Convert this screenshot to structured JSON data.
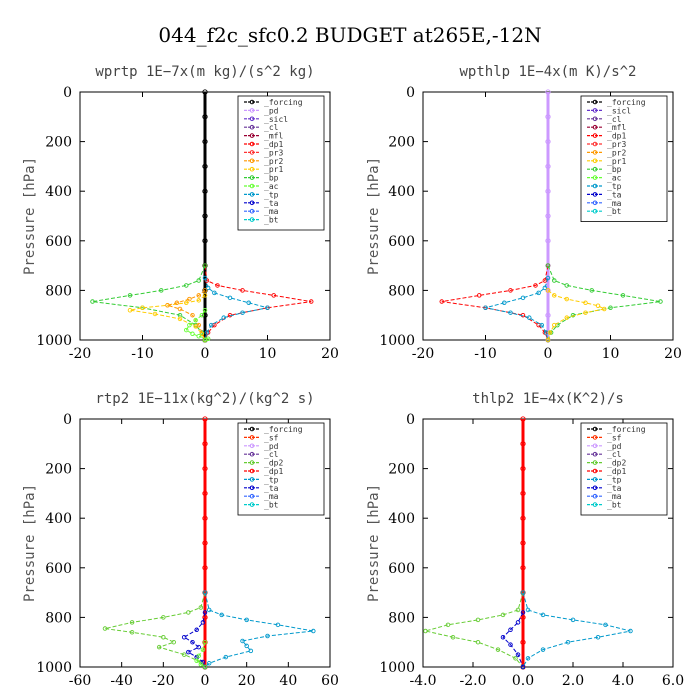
{
  "suptitle": "044_f2c_sfc0.2  BUDGET at265E,-12N",
  "colors": {
    "forcing": "#000000",
    "pd": "#cc99ff",
    "sicl": "#6633cc",
    "cl": "#663399",
    "mfl": "#990033",
    "dp1": "#ff0000",
    "pr3": "#ff3333",
    "pr2": "#ff9900",
    "pr1": "#ffcc00",
    "bp": "#33cc33",
    "ac": "#66ff33",
    "tp": "#0099cc",
    "ta": "#0000cc",
    "ma": "#3366ff",
    "bt": "#00cccc",
    "sf": "#ff3300",
    "dp2": "#66cc33"
  },
  "chart_data": [
    {
      "type": "line",
      "title": "wprtp   1E−7x(m kg)/(s^2 kg)",
      "ylabel": "Pressure [hPa]",
      "xlim": [
        -20,
        20
      ],
      "ylim": [
        1000,
        0
      ],
      "xticks": [
        "-20",
        "-10",
        "0",
        "10",
        "20"
      ],
      "yticks": [
        "0",
        "200",
        "400",
        "600",
        "800",
        "1000"
      ],
      "legend_position": "top-right",
      "legend": [
        "_forcing",
        "_pd",
        "_sicl",
        "_cl",
        "_mfl",
        "_dp1",
        "_pr3",
        "_pr2",
        "_pr1",
        "_bp",
        "_ac",
        "_tp",
        "_ta",
        "_ma",
        "_bt"
      ],
      "series": [
        {
          "name": "_forcing",
          "color_key": "forcing",
          "x": [
            0,
            0,
            0,
            0,
            0,
            0,
            0,
            0,
            0,
            0,
            0
          ],
          "y": [
            0,
            100,
            200,
            300,
            400,
            500,
            600,
            700,
            800,
            900,
            1000
          ]
        },
        {
          "name": "_dp1",
          "color_key": "dp1",
          "x": [
            0,
            0.3,
            2,
            6,
            11,
            17,
            10,
            4,
            1.5,
            0.5,
            0
          ],
          "y": [
            700,
            760,
            780,
            800,
            820,
            845,
            870,
            900,
            940,
            970,
            1000
          ]
        },
        {
          "name": "_bp",
          "color_key": "bp",
          "x": [
            0,
            -1,
            -3,
            -7,
            -12,
            -18,
            -10,
            -4,
            -1.5,
            -0.5,
            0
          ],
          "y": [
            700,
            760,
            780,
            800,
            820,
            845,
            870,
            900,
            940,
            970,
            1000
          ]
        },
        {
          "name": "_tp",
          "color_key": "tp",
          "x": [
            0,
            0.5,
            1.5,
            4,
            7,
            10,
            6,
            3,
            1,
            0.3,
            0
          ],
          "y": [
            750,
            790,
            810,
            830,
            850,
            870,
            890,
            910,
            940,
            970,
            1000
          ]
        },
        {
          "name": "_pr1",
          "color_key": "pr1",
          "x": [
            0,
            -1,
            -3,
            -6,
            -10,
            -12,
            -8,
            -4,
            -1.5,
            -0.5,
            0
          ],
          "y": [
            820,
            840,
            850,
            860,
            870,
            880,
            895,
            915,
            945,
            975,
            1000
          ]
        },
        {
          "name": "_pr2",
          "color_key": "pr2",
          "x": [
            0,
            -1,
            -2.5,
            -4.5,
            -6,
            -4,
            -2,
            -1,
            0
          ],
          "y": [
            800,
            820,
            835,
            850,
            860,
            875,
            900,
            940,
            1000
          ]
        },
        {
          "name": "_ac",
          "color_key": "ac",
          "x": [
            0,
            -0.5,
            -1.5,
            -2.5,
            -3,
            -2,
            -1,
            0.5,
            0
          ],
          "y": [
            880,
            900,
            920,
            940,
            960,
            975,
            985,
            995,
            1000
          ]
        }
      ]
    },
    {
      "type": "line",
      "title": "wpthlp   1E−4x(m K)/s^2",
      "ylabel": "Pressure [hPa]",
      "xlim": [
        -20,
        20
      ],
      "ylim": [
        1000,
        0
      ],
      "xticks": [
        "-20",
        "-10",
        "0",
        "10",
        "20"
      ],
      "yticks": [
        "0",
        "200",
        "400",
        "600",
        "800",
        "1000"
      ],
      "legend_position": "top-right",
      "legend": [
        "_forcing",
        "_sicl",
        "_cl",
        "_mfl",
        "_dp1",
        "_pr3",
        "_pr2",
        "_pr1",
        "_bp",
        "_ac",
        "_tp",
        "_ta",
        "_ma",
        "_bt"
      ],
      "series": [
        {
          "name": "_forcing",
          "color_key": "pd",
          "x": [
            0,
            0,
            0,
            0,
            0,
            0,
            0,
            0,
            0,
            0,
            0
          ],
          "y": [
            0,
            100,
            200,
            300,
            400,
            500,
            600,
            700,
            800,
            900,
            1000
          ]
        },
        {
          "name": "_dp1",
          "color_key": "dp1",
          "x": [
            0,
            -0.5,
            -2,
            -6,
            -11,
            -17,
            -10,
            -4,
            -1.5,
            -0.5,
            0
          ],
          "y": [
            700,
            760,
            780,
            800,
            820,
            845,
            870,
            900,
            940,
            970,
            1000
          ]
        },
        {
          "name": "_bp",
          "color_key": "bp",
          "x": [
            0,
            1,
            3,
            7,
            12,
            18,
            10,
            4,
            1.5,
            0.5,
            0
          ],
          "y": [
            700,
            760,
            780,
            800,
            820,
            845,
            870,
            900,
            940,
            970,
            1000
          ]
        },
        {
          "name": "_tp",
          "color_key": "tp",
          "x": [
            0,
            -0.5,
            -1.5,
            -4,
            -7,
            -10,
            -6,
            -3,
            -1,
            -0.3,
            0
          ],
          "y": [
            750,
            790,
            810,
            830,
            850,
            870,
            890,
            910,
            940,
            970,
            1000
          ]
        },
        {
          "name": "_pr1",
          "color_key": "pr1",
          "x": [
            0,
            1,
            3,
            6,
            8,
            9,
            6,
            3,
            1,
            0.3,
            0
          ],
          "y": [
            800,
            820,
            835,
            850,
            862,
            875,
            890,
            910,
            940,
            970,
            1000
          ]
        }
      ]
    },
    {
      "type": "line",
      "title": "rtp2   1E−11x(kg^2)/(kg^2 s)",
      "ylabel": "Pressure [hPa]",
      "xlim": [
        -60,
        60
      ],
      "ylim": [
        1000,
        0
      ],
      "xticks": [
        "-60",
        "-40",
        "-20",
        "0",
        "20",
        "40",
        "60"
      ],
      "yticks": [
        "0",
        "200",
        "400",
        "600",
        "800",
        "1000"
      ],
      "legend_position": "top-right",
      "legend": [
        "_forcing",
        "_sf",
        "_pd",
        "_cl",
        "_dp2",
        "_dp1",
        "_tp",
        "_ta",
        "_ma",
        "_bt"
      ],
      "series": [
        {
          "name": "_forcing",
          "color_key": "dp1",
          "x": [
            0,
            0,
            0,
            0,
            0,
            0,
            0,
            0,
            0,
            0,
            0
          ],
          "y": [
            0,
            100,
            200,
            300,
            400,
            500,
            600,
            700,
            800,
            900,
            1000
          ]
        },
        {
          "name": "_dp1",
          "color_key": "dp2",
          "x": [
            0,
            -2,
            -8,
            -20,
            -35,
            -48,
            -35,
            -20,
            -15,
            -22,
            -10,
            -2,
            0
          ],
          "y": [
            700,
            760,
            780,
            800,
            820,
            845,
            860,
            880,
            900,
            920,
            950,
            980,
            1000
          ]
        },
        {
          "name": "_tp",
          "color_key": "tp",
          "x": [
            0,
            2,
            8,
            20,
            35,
            52,
            30,
            18,
            20,
            22,
            10,
            2,
            0
          ],
          "y": [
            700,
            770,
            790,
            810,
            830,
            855,
            875,
            895,
            915,
            935,
            960,
            985,
            1000
          ]
        },
        {
          "name": "_ta",
          "color_key": "ta",
          "x": [
            0,
            -1,
            -4,
            -10,
            -6,
            -3,
            -8,
            -4,
            -1,
            0
          ],
          "y": [
            780,
            820,
            850,
            880,
            900,
            920,
            940,
            960,
            980,
            1000
          ]
        },
        {
          "name": "_dp2",
          "color_key": "ac",
          "x": [
            0,
            -1,
            -3,
            -4,
            -2,
            0
          ],
          "y": [
            900,
            930,
            955,
            975,
            990,
            1000
          ]
        }
      ]
    },
    {
      "type": "line",
      "title": "thlp2   1E−4x(K^2)/s",
      "ylabel": "Pressure [hPa]",
      "xlim": [
        -4,
        6
      ],
      "ylim": [
        1000,
        0
      ],
      "xticks": [
        "-4.0",
        "-2.0",
        "0.0",
        "2.0",
        "4.0",
        "6.0"
      ],
      "yticks": [
        "0",
        "200",
        "400",
        "600",
        "800",
        "1000"
      ],
      "legend_position": "top-right",
      "legend": [
        "_forcing",
        "_sf",
        "_pd",
        "_cl",
        "_dp2",
        "_dp1",
        "_tp",
        "_ta",
        "_ma",
        "_bt"
      ],
      "series": [
        {
          "name": "_forcing",
          "color_key": "dp1",
          "x": [
            0,
            0,
            0,
            0,
            0,
            0,
            0,
            0,
            0,
            0,
            0
          ],
          "y": [
            0,
            100,
            200,
            300,
            400,
            500,
            600,
            700,
            800,
            900,
            1000
          ]
        },
        {
          "name": "_dp1",
          "color_key": "dp2",
          "x": [
            0,
            -0.2,
            -0.8,
            -1.8,
            -3,
            -3.9,
            -2.8,
            -1.8,
            -1,
            -0.3,
            0
          ],
          "y": [
            700,
            770,
            790,
            810,
            830,
            855,
            880,
            900,
            930,
            965,
            1000
          ]
        },
        {
          "name": "_tp",
          "color_key": "tp",
          "x": [
            0,
            0.2,
            0.8,
            2,
            3.3,
            4.3,
            3,
            1.8,
            0.8,
            0.2,
            0
          ],
          "y": [
            700,
            770,
            790,
            810,
            830,
            855,
            880,
            900,
            930,
            965,
            1000
          ]
        },
        {
          "name": "_ta",
          "color_key": "ta",
          "x": [
            0,
            -0.2,
            -0.5,
            -0.8,
            -0.5,
            -0.2,
            0
          ],
          "y": [
            780,
            820,
            850,
            880,
            910,
            950,
            1000
          ]
        }
      ]
    }
  ]
}
